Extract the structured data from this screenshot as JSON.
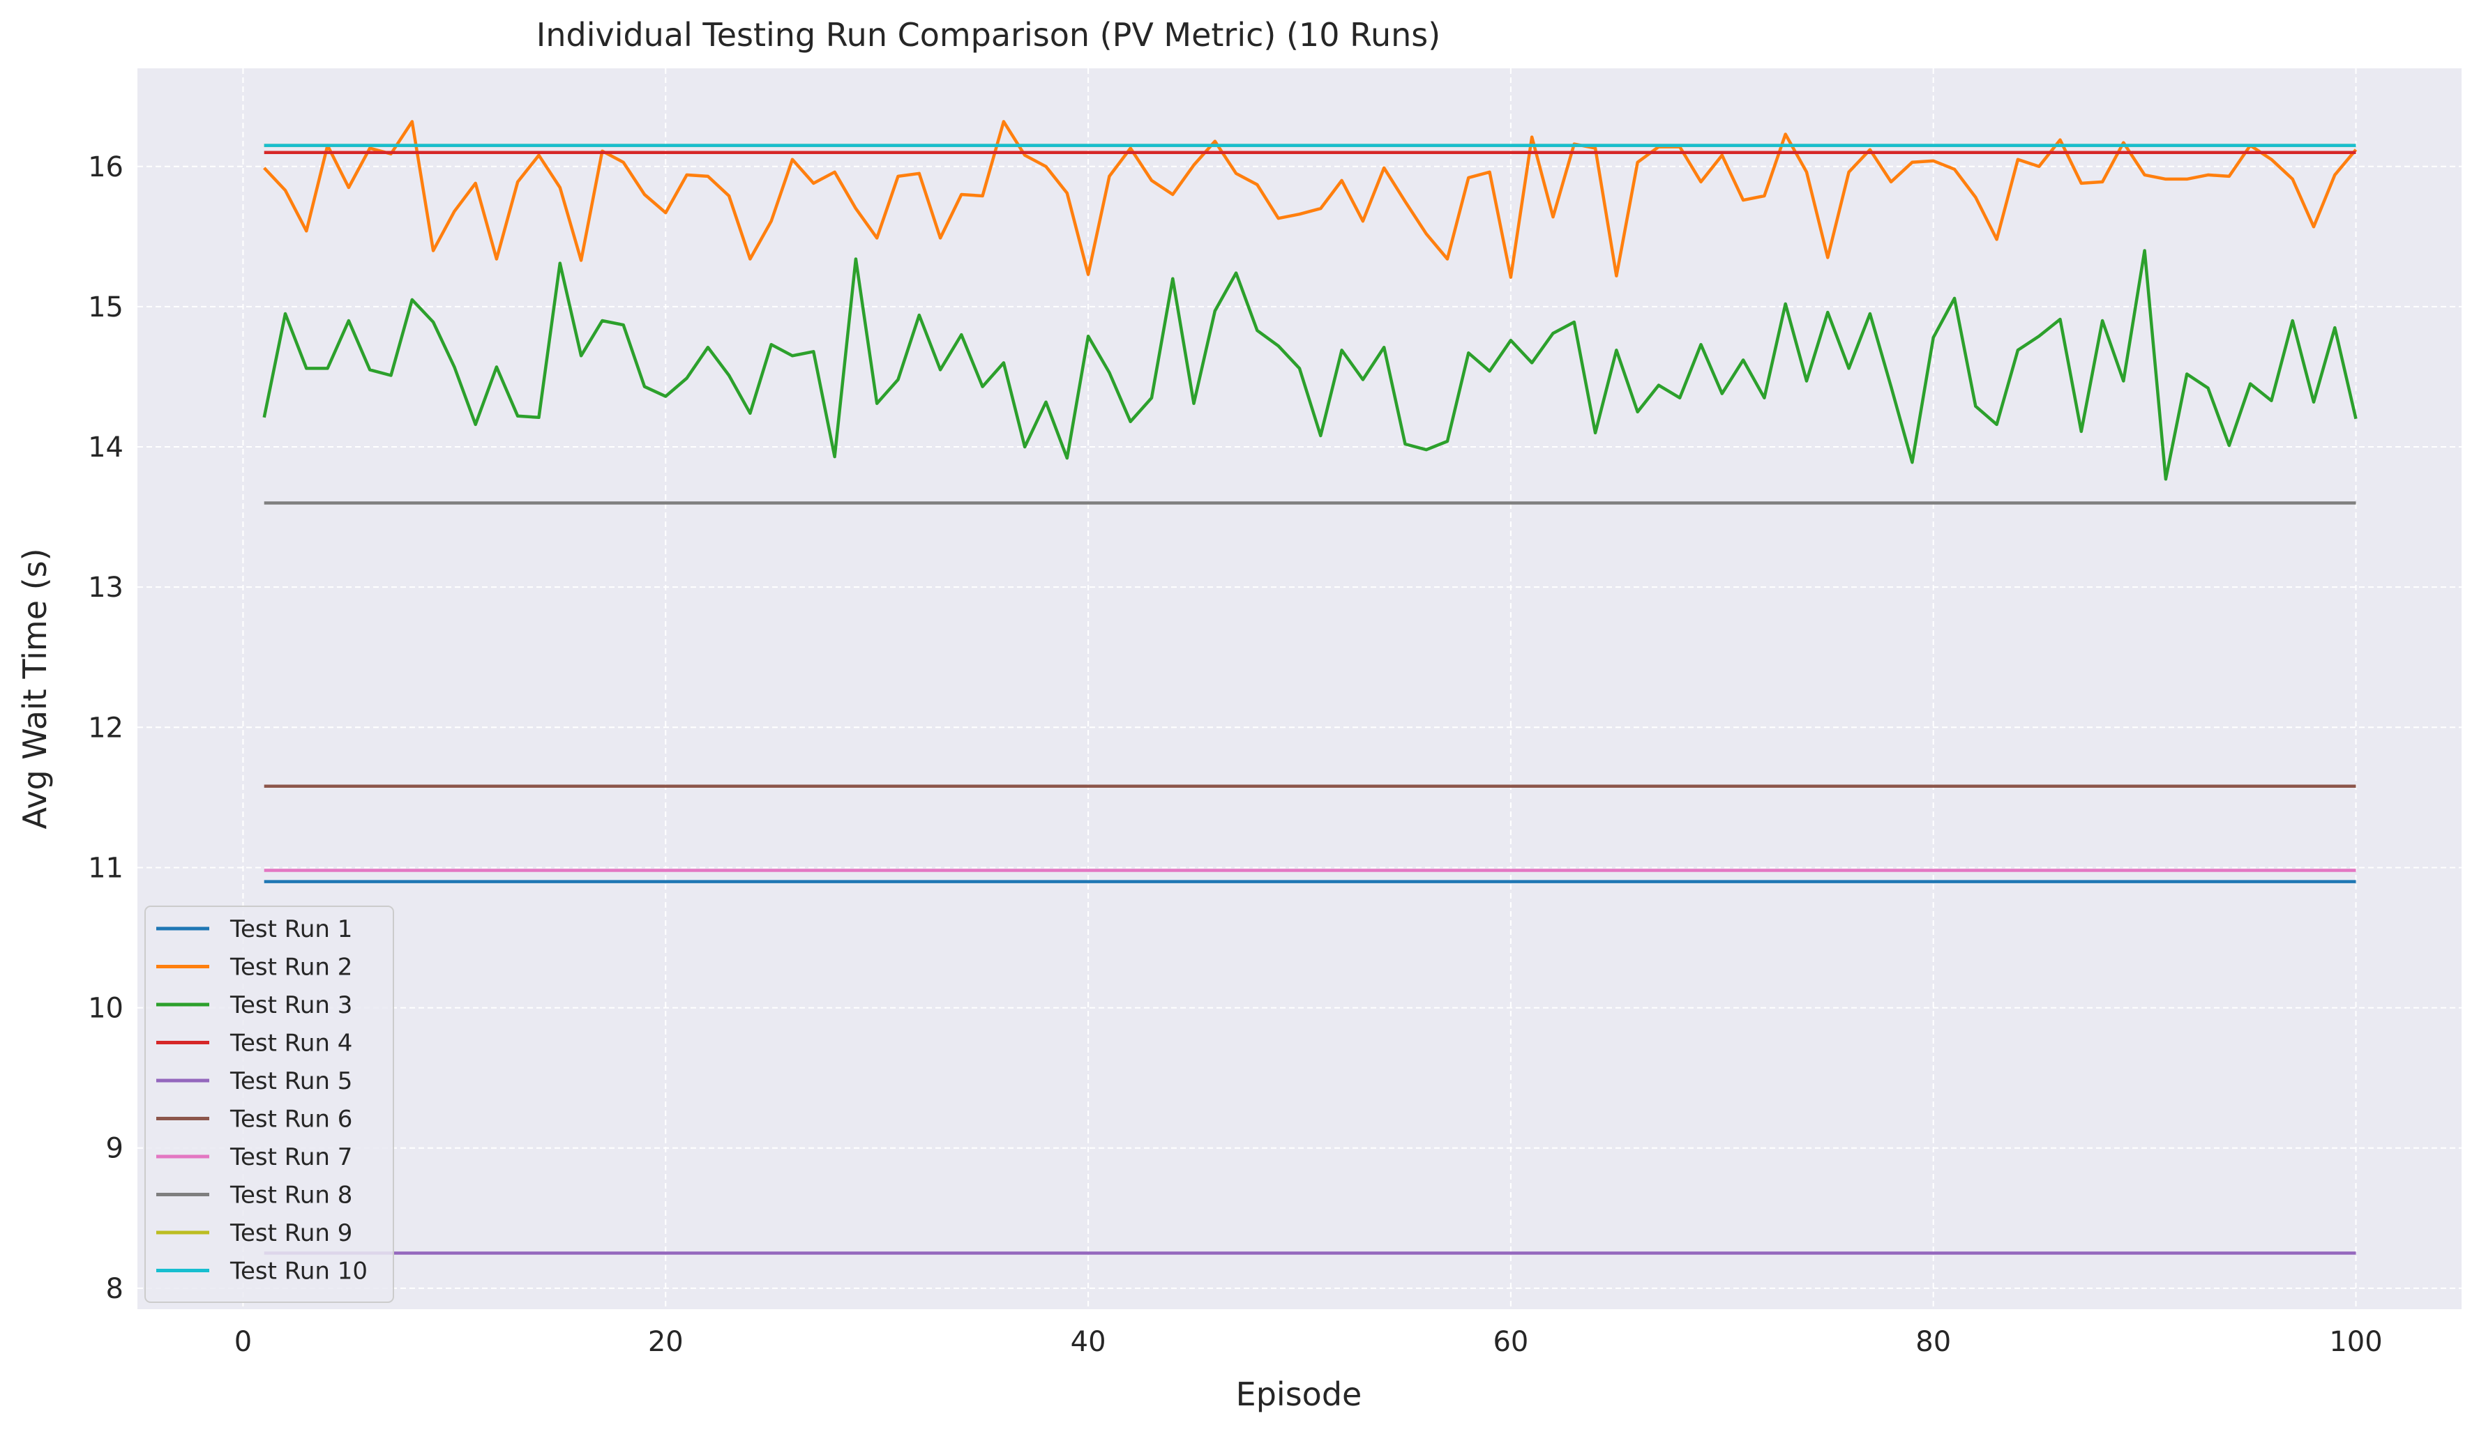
{
  "chart_data": {
    "type": "line",
    "title": "Individual Testing Run Comparison (PV Metric) (10 Runs)",
    "xlabel": "Episode",
    "ylabel": "Avg Wait Time (s)",
    "xlim": [
      -5,
      105
    ],
    "ylim": [
      7.85,
      16.7
    ],
    "xticks": [
      0,
      20,
      40,
      60,
      80,
      100
    ],
    "yticks": [
      8,
      9,
      10,
      11,
      12,
      13,
      14,
      15,
      16
    ],
    "grid": true,
    "legend_position": "lower-left",
    "x_range": [
      1,
      100
    ],
    "series": [
      {
        "name": "Test Run 1",
        "color": "#1f77b4",
        "constant": 10.9
      },
      {
        "name": "Test Run 2",
        "color": "#ff7f0e",
        "values": [
          15.99,
          15.83,
          15.54,
          16.15,
          15.85,
          16.13,
          16.09,
          16.32,
          15.4,
          15.68,
          15.88,
          15.34,
          15.89,
          16.08,
          15.85,
          15.33,
          16.11,
          16.03,
          15.8,
          15.67,
          15.94,
          15.93,
          15.79,
          15.34,
          15.61,
          16.05,
          15.88,
          15.96,
          15.7,
          15.49,
          15.93,
          15.95,
          15.49,
          15.8,
          15.79,
          16.32,
          16.08,
          16.0,
          15.81,
          15.23,
          15.93,
          16.13,
          15.9,
          15.8,
          16.01,
          16.18,
          15.95,
          15.87,
          15.63,
          15.66,
          15.7,
          15.9,
          15.61,
          15.99,
          15.75,
          15.52,
          15.34,
          15.92,
          15.96,
          15.21,
          16.21,
          15.64,
          16.16,
          16.13,
          15.22,
          16.03,
          16.14,
          16.14,
          15.89,
          16.08,
          15.76,
          15.79,
          16.23,
          15.96,
          15.35,
          15.96,
          16.12,
          15.89,
          16.03,
          16.04,
          15.98,
          15.78,
          15.48,
          16.05,
          16.0,
          16.19,
          15.88,
          15.89,
          16.17,
          15.94,
          15.91,
          15.91,
          15.94,
          15.93,
          16.15,
          16.05,
          15.91,
          15.57,
          15.94,
          16.12
        ]
      },
      {
        "name": "Test Run 3",
        "color": "#2ca02c",
        "values": [
          14.21,
          14.95,
          14.56,
          14.56,
          14.9,
          14.55,
          14.51,
          15.05,
          14.89,
          14.57,
          14.16,
          14.57,
          14.22,
          14.21,
          15.31,
          14.65,
          14.9,
          14.87,
          14.43,
          14.36,
          14.49,
          14.71,
          14.51,
          14.24,
          14.73,
          14.65,
          14.68,
          13.93,
          15.34,
          14.31,
          14.48,
          14.94,
          14.55,
          14.8,
          14.43,
          14.6,
          14.0,
          14.32,
          13.92,
          14.79,
          14.53,
          14.18,
          14.35,
          15.2,
          14.31,
          14.97,
          15.24,
          14.83,
          14.72,
          14.56,
          14.08,
          14.69,
          14.48,
          14.71,
          14.02,
          13.98,
          14.04,
          14.67,
          14.54,
          14.76,
          14.6,
          14.81,
          14.89,
          14.1,
          14.69,
          14.25,
          14.44,
          14.35,
          14.73,
          14.38,
          14.62,
          14.35,
          15.02,
          14.47,
          14.96,
          14.56,
          14.95,
          14.43,
          13.89,
          14.78,
          15.06,
          14.29,
          14.16,
          14.69,
          14.79,
          14.91,
          14.11,
          14.9,
          14.47,
          15.4,
          13.77,
          14.52,
          14.42,
          14.01,
          14.45,
          14.33,
          14.9,
          14.32,
          14.85,
          14.2
        ]
      },
      {
        "name": "Test Run 4",
        "color": "#d62728",
        "constant": 16.1
      },
      {
        "name": "Test Run 5",
        "color": "#9467bd",
        "constant": 8.25
      },
      {
        "name": "Test Run 6",
        "color": "#8c564b",
        "constant": 11.58
      },
      {
        "name": "Test Run 7",
        "color": "#e377c2",
        "constant": 10.98
      },
      {
        "name": "Test Run 8",
        "color": "#7f7f7f",
        "constant": 13.6
      },
      {
        "name": "Test Run 9",
        "color": "#bcbd22",
        "constant": 16.15
      },
      {
        "name": "Test Run 10",
        "color": "#17becf",
        "constant": 16.15
      }
    ]
  }
}
